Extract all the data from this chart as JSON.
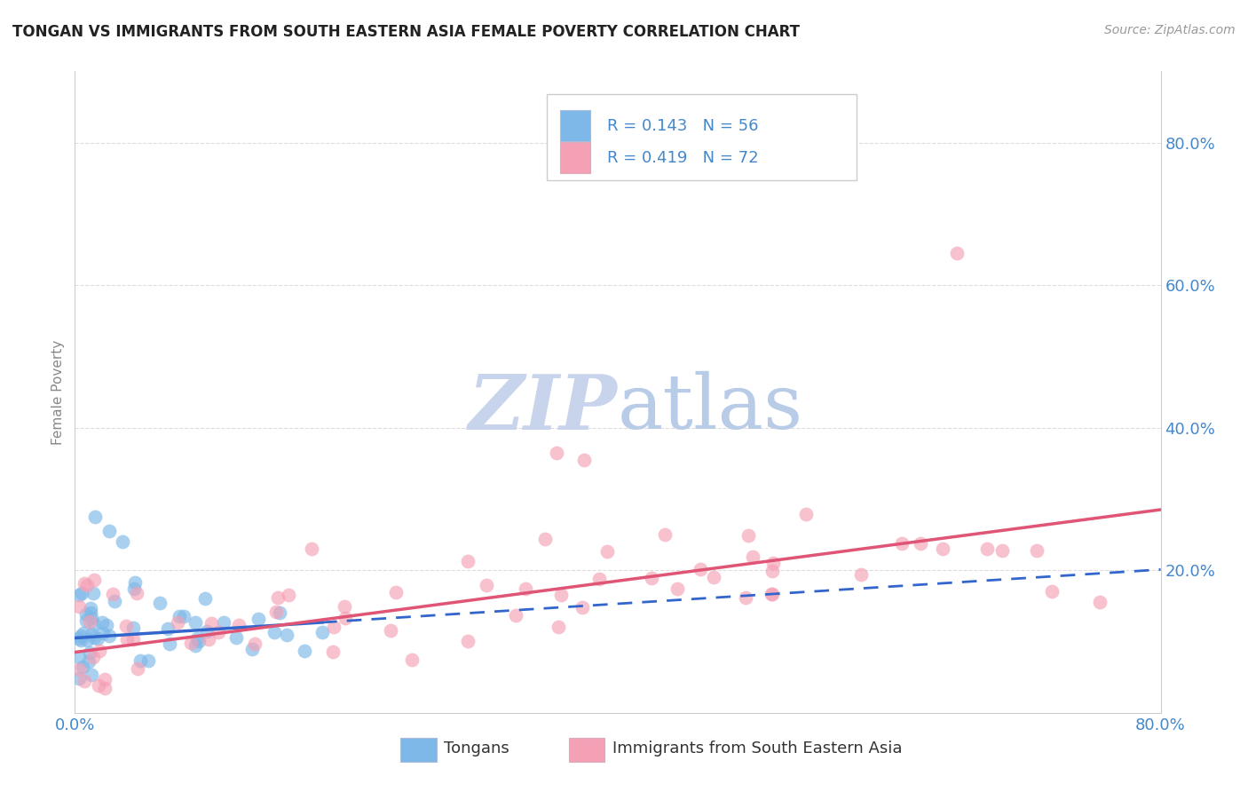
{
  "title": "TONGAN VS IMMIGRANTS FROM SOUTH EASTERN ASIA FEMALE POVERTY CORRELATION CHART",
  "source": "Source: ZipAtlas.com",
  "ylabel": "Female Poverty",
  "right_yticks": [
    "80.0%",
    "60.0%",
    "40.0%",
    "20.0%"
  ],
  "right_ytick_vals": [
    0.8,
    0.6,
    0.4,
    0.2
  ],
  "xlim": [
    0.0,
    0.8
  ],
  "ylim": [
    0.0,
    0.9
  ],
  "legend_blue_R": "0.143",
  "legend_blue_N": "56",
  "legend_pink_R": "0.419",
  "legend_pink_N": "72",
  "blue_color": "#7DB8E8",
  "pink_color": "#F4A0B5",
  "blue_line_color": "#3366CC",
  "pink_line_color": "#E05575",
  "watermark_zip_color": "#C8D4EC",
  "watermark_atlas_color": "#B8CCE8",
  "bg_color": "#FFFFFF",
  "grid_color": "#DDDDDD",
  "title_color": "#222222",
  "source_color": "#999999",
  "tick_color": "#4488CC",
  "ylabel_color": "#888888",
  "legend_text_color": "#4488CC",
  "bottom_legend_text_color": "#333333"
}
